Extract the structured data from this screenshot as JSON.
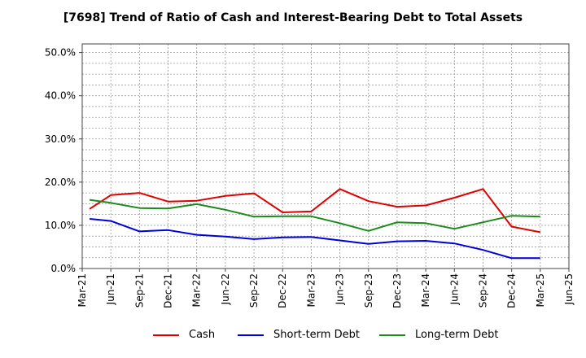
{
  "chart_data": {
    "type": "line",
    "title": "[7698]  Trend of Ratio of Cash and Interest-Bearing Debt to Total Assets",
    "xlabel": "",
    "ylabel": "",
    "ylim": [
      0,
      52
    ],
    "yticks": [
      0,
      10,
      20,
      30,
      40,
      50
    ],
    "ytick_labels": [
      "0.0%",
      "10.0%",
      "20.0%",
      "30.0%",
      "40.0%",
      "50.0%"
    ],
    "xtick_labels": [
      "Mar-21",
      "Jun-21",
      "Sep-21",
      "Dec-21",
      "Mar-22",
      "Jun-22",
      "Sep-22",
      "Dec-22",
      "Mar-23",
      "Jun-23",
      "Sep-23",
      "Dec-23",
      "Mar-24",
      "Jun-24",
      "Sep-24",
      "Dec-24",
      "Mar-25",
      "Jun-25"
    ],
    "categories": [
      "Apr-21",
      "Jun-21",
      "Sep-21",
      "Dec-21",
      "Mar-22",
      "Jun-22",
      "Sep-22",
      "Dec-22",
      "Mar-23",
      "Jun-23",
      "Sep-23",
      "Dec-23",
      "Mar-24",
      "Jun-24",
      "Sep-24",
      "Dec-24",
      "Mar-25"
    ],
    "grid": true,
    "legend_position": "bottom",
    "series": [
      {
        "name": "Cash",
        "color": "#e00000",
        "values": [
          13.8,
          17.0,
          17.5,
          15.5,
          15.7,
          16.8,
          17.4,
          13.0,
          13.2,
          18.4,
          15.6,
          14.3,
          14.6,
          16.4,
          18.4,
          9.7,
          8.4
        ]
      },
      {
        "name": "Short-term Debt",
        "color": "#0000dd",
        "values": [
          11.5,
          11.0,
          8.6,
          8.9,
          7.8,
          7.4,
          6.8,
          7.2,
          7.3,
          6.5,
          5.7,
          6.3,
          6.4,
          5.8,
          4.3,
          2.4,
          2.4
        ]
      },
      {
        "name": "Long-term Debt",
        "color": "#1a8a1a",
        "values": [
          15.9,
          15.2,
          14.0,
          13.9,
          14.9,
          13.6,
          12.0,
          12.1,
          12.1,
          10.5,
          8.7,
          10.7,
          10.5,
          9.2,
          10.7,
          12.2,
          12.0
        ]
      }
    ]
  }
}
